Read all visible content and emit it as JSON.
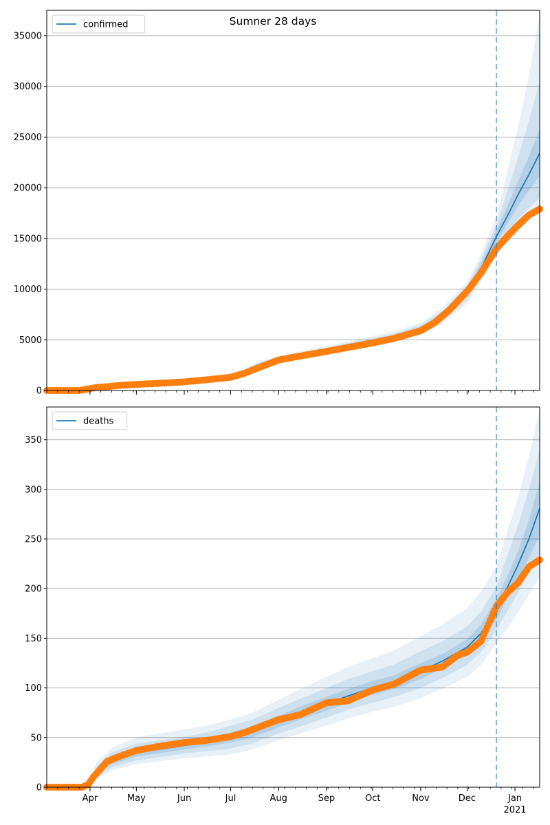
{
  "title": "Sumner 28 days",
  "x_axis": {
    "month_labels": [
      "Apr",
      "May",
      "Jun",
      "Jul",
      "Aug",
      "Sep",
      "Oct",
      "Nov",
      "Dec",
      "Jan"
    ],
    "year_label": "2021"
  },
  "colors": {
    "model_line": "#1f77b4",
    "observed_points": "#ff7f0e",
    "band": "#1f77b4",
    "forecast_marker": "#1f77b4",
    "grid": "#b0b0b0"
  },
  "chart_data": [
    {
      "type": "line",
      "panel": "top",
      "legend": {
        "label": "confirmed",
        "placement": "upper-left"
      },
      "x_range": [
        "2020-03-04",
        "2021-01-17"
      ],
      "ylim": [
        0,
        37500
      ],
      "yticks": [
        0,
        5000,
        10000,
        15000,
        20000,
        25000,
        30000,
        35000
      ],
      "grid": "horizontal",
      "forecast_start": "2020-12-20",
      "model_line": {
        "name": "confirmed",
        "x": [
          "2020-03-04",
          "2020-03-28",
          "2020-04-05",
          "2020-04-20",
          "2020-05-05",
          "2020-05-20",
          "2020-06-05",
          "2020-06-20",
          "2020-07-01",
          "2020-07-10",
          "2020-07-20",
          "2020-08-01",
          "2020-08-15",
          "2020-09-01",
          "2020-09-15",
          "2020-10-01",
          "2020-10-15",
          "2020-11-01",
          "2020-11-15",
          "2020-12-01",
          "2020-12-10",
          "2020-12-20",
          "2020-12-27",
          "2021-01-03",
          "2021-01-10",
          "2021-01-17"
        ],
        "y": [
          0,
          60,
          250,
          500,
          650,
          800,
          950,
          1150,
          1450,
          1850,
          2500,
          3000,
          3400,
          3900,
          4300,
          4800,
          5200,
          6000,
          7300,
          9600,
          12000,
          15200,
          17200,
          19300,
          21300,
          23400
        ]
      },
      "bands": [
        {
          "level": "outer",
          "lower": [
            0,
            20,
            180,
            380,
            520,
            650,
            780,
            950,
            1200,
            1550,
            2150,
            2650,
            3050,
            3500,
            3870,
            4330,
            4700,
            5420,
            6550,
            8600,
            10650,
            13400,
            14400,
            15600,
            16600,
            17500
          ],
          "upper": [
            0,
            110,
            330,
            640,
            800,
            970,
            1140,
            1380,
            1720,
            2180,
            2900,
            3430,
            3860,
            4400,
            4840,
            5370,
            5830,
            6680,
            8120,
            10700,
            13450,
            17200,
            21600,
            26000,
            31000,
            37200
          ]
        },
        {
          "level": "middle",
          "lower": [
            0,
            35,
            205,
            420,
            565,
            700,
            840,
            1015,
            1285,
            1650,
            2270,
            2780,
            3180,
            3650,
            4030,
            4500,
            4880,
            5620,
            6800,
            8950,
            11100,
            14100,
            15500,
            16900,
            18000,
            19000
          ],
          "upper": [
            0,
            90,
            300,
            585,
            740,
            905,
            1065,
            1290,
            1620,
            2060,
            2760,
            3280,
            3710,
            4230,
            4660,
            5170,
            5610,
            6440,
            7830,
            10300,
            12950,
            16400,
            19600,
            23000,
            26600,
            30500
          ]
        },
        {
          "level": "inner",
          "lower": [
            0,
            48,
            228,
            455,
            600,
            745,
            890,
            1075,
            1360,
            1745,
            2380,
            2880,
            3290,
            3770,
            4160,
            4650,
            5040,
            5800,
            7050,
            9300,
            11500,
            14600,
            16400,
            18200,
            19700,
            21200
          ],
          "upper": [
            0,
            75,
            275,
            545,
            700,
            855,
            1010,
            1225,
            1540,
            1955,
            2620,
            3120,
            3520,
            4030,
            4440,
            4950,
            5360,
            6200,
            7550,
            9900,
            12500,
            15800,
            18200,
            20600,
            23100,
            25800
          ]
        }
      ],
      "observed": {
        "x": [
          "2020-03-04",
          "2020-03-15",
          "2020-03-25",
          "2020-03-31",
          "2020-04-05",
          "2020-04-10",
          "2020-04-20",
          "2020-05-01",
          "2020-05-15",
          "2020-06-01",
          "2020-06-15",
          "2020-07-01",
          "2020-07-10",
          "2020-07-20",
          "2020-08-01",
          "2020-08-15",
          "2020-09-01",
          "2020-09-15",
          "2020-10-01",
          "2020-10-15",
          "2020-11-01",
          "2020-11-10",
          "2020-11-20",
          "2020-12-01",
          "2020-12-10",
          "2020-12-20",
          "2020-12-27",
          "2021-01-03",
          "2021-01-10",
          "2021-01-17"
        ],
        "y": [
          0,
          0,
          0,
          150,
          300,
          350,
          500,
          600,
          700,
          850,
          1050,
          1300,
          1700,
          2300,
          3000,
          3400,
          3850,
          4250,
          4700,
          5150,
          5900,
          6700,
          8000,
          9800,
          11600,
          14000,
          15200,
          16300,
          17300,
          17900
        ]
      }
    },
    {
      "type": "line",
      "panel": "bottom",
      "legend": {
        "label": "deaths",
        "placement": "upper-left"
      },
      "x_range": [
        "2020-03-04",
        "2021-01-17"
      ],
      "ylim": [
        0,
        383
      ],
      "yticks": [
        0,
        50,
        100,
        150,
        200,
        250,
        300,
        350
      ],
      "grid": "horizontal",
      "forecast_start": "2020-12-20",
      "model_line": {
        "name": "deaths",
        "x": [
          "2020-03-04",
          "2020-03-28",
          "2020-04-01",
          "2020-04-05",
          "2020-04-15",
          "2020-05-01",
          "2020-05-15",
          "2020-06-01",
          "2020-06-15",
          "2020-07-01",
          "2020-07-15",
          "2020-08-01",
          "2020-08-15",
          "2020-09-01",
          "2020-09-15",
          "2020-10-01",
          "2020-10-15",
          "2020-11-01",
          "2020-11-15",
          "2020-12-01",
          "2020-12-10",
          "2020-12-20",
          "2020-12-27",
          "2021-01-03",
          "2021-01-10",
          "2021-01-17"
        ],
        "y": [
          0,
          0,
          5,
          15,
          27,
          35,
          38,
          42,
          45,
          50,
          55,
          66,
          74,
          84,
          92,
          100,
          106,
          117,
          127,
          141,
          155,
          179,
          201,
          224,
          250,
          281
        ]
      },
      "bands": [
        {
          "level": "outer",
          "lower": [
            0,
            0,
            2,
            8,
            17,
            23,
            26,
            29,
            31,
            33,
            38,
            47,
            54,
            62,
            69,
            76,
            81,
            90,
            99,
            111,
            123,
            145,
            160,
            176,
            194,
            212
          ],
          "upper": [
            0,
            0,
            9,
            24,
            40,
            50,
            54,
            58,
            62,
            68,
            75,
            88,
            99,
            111,
            121,
            130,
            138,
            152,
            164,
            180,
            197,
            222,
            258,
            292,
            334,
            380
          ]
        },
        {
          "level": "middle",
          "lower": [
            0,
            0,
            3,
            10,
            20,
            27,
            30,
            34,
            36,
            39,
            44,
            54,
            61,
            70,
            78,
            85,
            91,
            100,
            110,
            123,
            136,
            158,
            177,
            196,
            215,
            236
          ],
          "upper": [
            0,
            0,
            7,
            21,
            35,
            44,
            47,
            51,
            55,
            62,
            68,
            80,
            89,
            100,
            109,
            117,
            124,
            137,
            147,
            162,
            177,
            202,
            233,
            264,
            300,
            340
          ]
        },
        {
          "level": "inner",
          "lower": [
            0,
            0,
            4,
            12,
            23,
            31,
            34,
            38,
            41,
            45,
            50,
            60,
            68,
            77,
            85,
            93,
            99,
            109,
            120,
            133,
            146,
            169,
            190,
            210,
            231,
            254
          ],
          "upper": [
            0,
            0,
            6,
            18,
            31,
            39,
            42,
            46,
            49,
            55,
            61,
            72,
            81,
            91,
            99,
            107,
            113,
            125,
            134,
            149,
            164,
            190,
            212,
            238,
            269,
            308
          ]
        }
      ],
      "observed": {
        "x": [
          "2020-03-04",
          "2020-03-27",
          "2020-03-31",
          "2020-04-03",
          "2020-04-07",
          "2020-04-12",
          "2020-04-20",
          "2020-05-01",
          "2020-05-15",
          "2020-06-01",
          "2020-06-15",
          "2020-07-01",
          "2020-07-10",
          "2020-07-20",
          "2020-08-01",
          "2020-08-15",
          "2020-09-01",
          "2020-09-15",
          "2020-10-01",
          "2020-10-15",
          "2020-11-01",
          "2020-11-15",
          "2020-11-25",
          "2020-12-01",
          "2020-12-10",
          "2020-12-20",
          "2020-12-27",
          "2021-01-03",
          "2021-01-10",
          "2021-01-17"
        ],
        "y": [
          0,
          0,
          3,
          10,
          17,
          26,
          31,
          37,
          41,
          45,
          47,
          51,
          55,
          61,
          68,
          73,
          85,
          87,
          98,
          104,
          118,
          121,
          133,
          136,
          147,
          182,
          196,
          206,
          222,
          229
        ]
      }
    }
  ]
}
